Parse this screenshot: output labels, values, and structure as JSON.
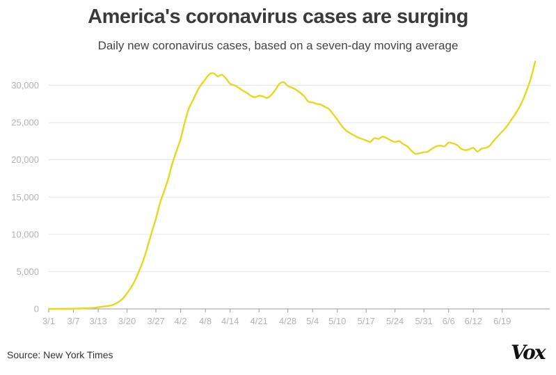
{
  "header": {
    "title": "America's coronavirus cases are surging",
    "subtitle": "Daily new coronavirus cases, based on a seven-day moving average"
  },
  "footer": {
    "source": "Source: New York Times",
    "logo": "Vox"
  },
  "colors": {
    "line": "#e6d81f",
    "grid": "#e6e6e6",
    "axis": "#999999",
    "tick_text": "#b3b3b3"
  },
  "chart_data": {
    "type": "line",
    "title": "America's coronavirus cases are surging",
    "subtitle": "Daily new coronavirus cases, based on a seven-day moving average",
    "xlabel": "",
    "ylabel": "",
    "x_start": "3/1",
    "x_tick_labels": [
      "3/1",
      "3/7",
      "3/13",
      "3/20",
      "3/27",
      "4/2",
      "4/8",
      "4/14",
      "4/21",
      "4/28",
      "5/4",
      "5/10",
      "5/17",
      "5/24",
      "5/31",
      "6/6",
      "6/12",
      "6/19"
    ],
    "x_tick_dates": [
      "3/1",
      "3/7",
      "3/13",
      "3/20",
      "3/27",
      "4/2",
      "4/8",
      "4/14",
      "4/21",
      "4/28",
      "5/4",
      "5/10",
      "5/17",
      "5/24",
      "5/31",
      "6/6",
      "6/12",
      "6/19"
    ],
    "y_ticks": [
      0,
      5000,
      10000,
      15000,
      20000,
      25000,
      30000
    ],
    "y_tick_labels": [
      "0",
      "5,000",
      "10,000",
      "15,000",
      "20,000",
      "25,000",
      "30,000"
    ],
    "ylim": [
      0,
      33500
    ],
    "xlim": [
      "3/1",
      "6/28"
    ],
    "grid": true,
    "series": [
      {
        "x": [
          "3/1",
          "3/5",
          "3/9",
          "3/12",
          "3/14",
          "3/16",
          "3/17",
          "3/18",
          "3/19",
          "3/20",
          "3/21",
          "3/22",
          "3/23",
          "3/24",
          "3/25",
          "3/26",
          "3/27",
          "3/28",
          "3/29",
          "3/30",
          "3/31",
          "4/1",
          "4/2",
          "4/3",
          "4/4",
          "4/5",
          "4/6",
          "4/7",
          "4/8",
          "4/9",
          "4/10",
          "4/11",
          "4/12",
          "4/13",
          "4/14",
          "4/15",
          "4/16",
          "4/17",
          "4/18",
          "4/19",
          "4/20",
          "4/21",
          "4/22",
          "4/23",
          "4/24",
          "4/25",
          "4/26",
          "4/27",
          "4/28",
          "4/29",
          "4/30",
          "5/1",
          "5/2",
          "5/3",
          "5/4",
          "5/5",
          "5/6",
          "5/7",
          "5/8",
          "5/9",
          "5/10",
          "5/11",
          "5/12",
          "5/13",
          "5/14",
          "5/15",
          "5/16",
          "5/17",
          "5/18",
          "5/19",
          "5/20",
          "5/21",
          "5/22",
          "5/23",
          "5/24",
          "5/25",
          "5/26",
          "5/27",
          "5/28",
          "5/29",
          "5/30",
          "5/31",
          "6/1",
          "6/2",
          "6/3",
          "6/4",
          "6/5",
          "6/6",
          "6/7",
          "6/8",
          "6/9",
          "6/10",
          "6/11",
          "6/12",
          "6/13",
          "6/14",
          "6/15",
          "6/16",
          "6/17",
          "6/18",
          "6/19",
          "6/20",
          "6/21",
          "6/22",
          "6/23",
          "6/24",
          "6/25",
          "6/26",
          "6/27"
        ],
        "y": [
          0,
          20,
          60,
          150,
          300,
          450,
          650,
          950,
          1400,
          2100,
          2900,
          3900,
          5200,
          6600,
          8400,
          10300,
          12100,
          14200,
          15800,
          17500,
          19500,
          21200,
          22800,
          25000,
          26900,
          28000,
          29200,
          30100,
          30800,
          31500,
          31600,
          31200,
          31400,
          30900,
          30200,
          30000,
          29700,
          29300,
          29000,
          28600,
          28400,
          28600,
          28500,
          28300,
          28700,
          29400,
          30200,
          30400,
          29900,
          29700,
          29400,
          29000,
          28500,
          27800,
          27700,
          27500,
          27400,
          27100,
          26800,
          26100,
          25400,
          24600,
          24000,
          23600,
          23300,
          23000,
          22800,
          22600,
          22400,
          22900,
          22800,
          23100,
          22900,
          22600,
          22400,
          22500,
          22100,
          21800,
          21200,
          20800,
          20900,
          21000,
          21100,
          21500,
          21800,
          21900,
          21800,
          22300,
          22200,
          22000,
          21500,
          21300,
          21400,
          21600,
          21100,
          21500,
          21600,
          21900,
          22600,
          23200,
          23800,
          24400,
          25200,
          26000,
          26900,
          28000,
          29400,
          31000,
          33200
        ]
      }
    ]
  }
}
